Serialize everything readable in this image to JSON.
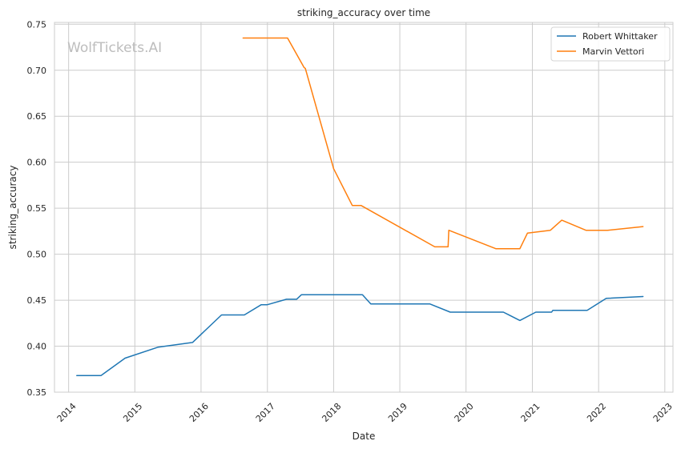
{
  "chart_data": {
    "type": "line",
    "title": "striking_accuracy over time",
    "xlabel": "Date",
    "ylabel": "striking_accuracy",
    "watermark": "WolfTickets.AI",
    "x_range": [
      "2013-10-15",
      "2023-02-15"
    ],
    "ylim": [
      0.35,
      0.752
    ],
    "x_ticks": [
      "2014",
      "2015",
      "2016",
      "2017",
      "2018",
      "2019",
      "2020",
      "2021",
      "2022",
      "2023"
    ],
    "y_ticks": [
      "0.35",
      "0.40",
      "0.45",
      "0.50",
      "0.55",
      "0.60",
      "0.65",
      "0.70",
      "0.75"
    ],
    "grid": true,
    "legend_position": "top-right",
    "series": [
      {
        "name": "Robert Whittaker",
        "color": "#1f77b4",
        "points": [
          [
            "2014-02-15",
            0.368
          ],
          [
            "2014-06-28",
            0.368
          ],
          [
            "2014-11-08",
            0.387
          ],
          [
            "2015-05-10",
            0.399
          ],
          [
            "2015-11-15",
            0.404
          ],
          [
            "2016-04-23",
            0.434
          ],
          [
            "2016-08-27",
            0.434
          ],
          [
            "2016-11-27",
            0.445
          ],
          [
            "2016-12-30",
            0.445
          ],
          [
            "2017-04-16",
            0.451
          ],
          [
            "2017-06-11",
            0.451
          ],
          [
            "2017-07-08",
            0.456
          ],
          [
            "2018-02-15",
            0.456
          ],
          [
            "2018-06-09",
            0.456
          ],
          [
            "2018-07-25",
            0.446
          ],
          [
            "2019-06-15",
            0.446
          ],
          [
            "2019-10-06",
            0.437
          ],
          [
            "2020-07-25",
            0.437
          ],
          [
            "2020-10-24",
            0.428
          ],
          [
            "2021-01-20",
            0.437
          ],
          [
            "2021-04-17",
            0.437
          ],
          [
            "2021-04-24",
            0.439
          ],
          [
            "2021-10-30",
            0.439
          ],
          [
            "2022-02-12",
            0.452
          ],
          [
            "2022-09-03",
            0.454
          ]
        ]
      },
      {
        "name": "Marvin Vettori",
        "color": "#ff7f0e",
        "points": [
          [
            "2016-08-20",
            0.735
          ],
          [
            "2017-04-22",
            0.735
          ],
          [
            "2017-07-22",
            0.703
          ],
          [
            "2017-07-29",
            0.702
          ],
          [
            "2018-01-01",
            0.593
          ],
          [
            "2018-04-14",
            0.553
          ],
          [
            "2018-06-01",
            0.553
          ],
          [
            "2019-07-13",
            0.508
          ],
          [
            "2019-09-24",
            0.508
          ],
          [
            "2019-09-28",
            0.526
          ],
          [
            "2020-06-13",
            0.506
          ],
          [
            "2020-10-24",
            0.506
          ],
          [
            "2020-12-05",
            0.523
          ],
          [
            "2021-04-10",
            0.526
          ],
          [
            "2021-06-12",
            0.537
          ],
          [
            "2021-10-23",
            0.526
          ],
          [
            "2022-02-20",
            0.526
          ],
          [
            "2022-09-03",
            0.53
          ]
        ]
      }
    ]
  }
}
